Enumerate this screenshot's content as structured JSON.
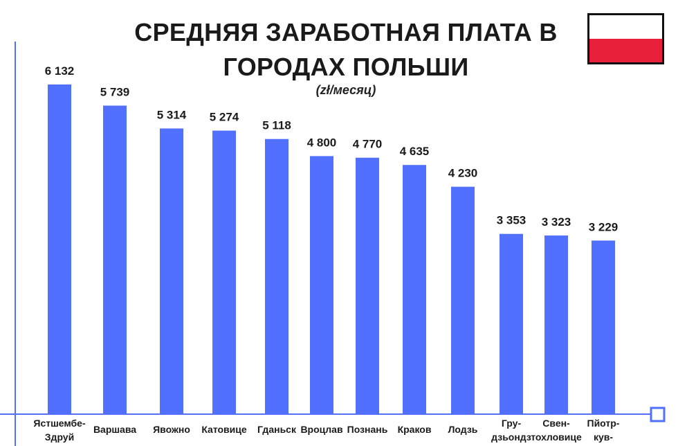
{
  "header": {
    "title_line1": "СРЕДНЯЯ ЗАРАБОТНАЯ ПЛАТА В",
    "title_line2": "ГОРОДАХ ПОЛЬШИ",
    "subtitle": "(zł/месяц)"
  },
  "flag": {
    "top_color": "#ffffff",
    "bottom_color": "#e8203a",
    "border_color": "#111111"
  },
  "colors": {
    "bar": "#5170ff",
    "axis": "#5170ff"
  },
  "chart_data": {
    "type": "bar",
    "title": "СРЕДНЯЯ ЗАРАБОТНАЯ ПЛАТА В ГОРОДАХ ПОЛЬШИ",
    "subtitle": "(zł/месяц)",
    "categories": [
      [
        "Ястшембе-",
        "Здруй"
      ],
      [
        "Варшава"
      ],
      [
        "Явожно"
      ],
      [
        "Катовице"
      ],
      [
        "Гданьск"
      ],
      [
        "Вроцлав"
      ],
      [
        "Познань"
      ],
      [
        "Краков"
      ],
      [
        "Лодзь"
      ],
      [
        "Гру-",
        "дзьондз"
      ],
      [
        "Свен-",
        "тохловице"
      ],
      [
        "Пйотр-",
        "кув-"
      ]
    ],
    "values": [
      6132,
      5739,
      5314,
      5274,
      5118,
      4800,
      4770,
      4635,
      4230,
      3353,
      3323,
      3229
    ],
    "value_labels": [
      "6 132",
      "5 739",
      "5 314",
      "5 274",
      "5 118",
      "4 800",
      "4 770",
      "4 635",
      "4 230",
      "3 353",
      "3 323",
      "3 229"
    ],
    "xlabel": "",
    "ylabel": "",
    "ylim": [
      0,
      6132
    ],
    "grid": false,
    "legend": "none"
  }
}
